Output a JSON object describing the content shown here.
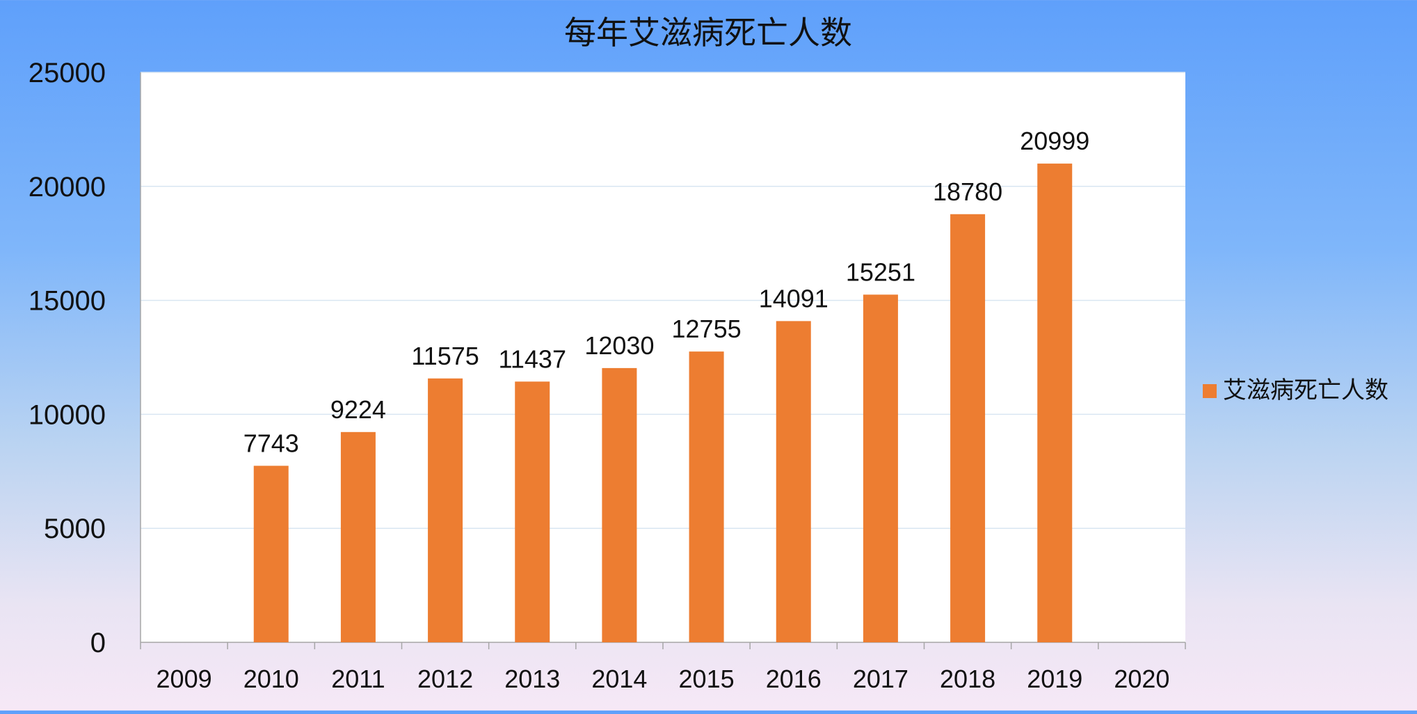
{
  "chart_data": {
    "type": "bar",
    "title": "每年艾滋病死亡人数",
    "categories": [
      "2009",
      "2010",
      "2011",
      "2012",
      "2013",
      "2014",
      "2015",
      "2016",
      "2017",
      "2018",
      "2019",
      "2020"
    ],
    "series": [
      {
        "name": "艾滋病死亡人数",
        "color": "#ed7d31",
        "values": [
          null,
          7743,
          9224,
          11575,
          11437,
          12030,
          12755,
          14091,
          15251,
          18780,
          20999,
          null
        ]
      }
    ],
    "yticks": [
      "0",
      "5000",
      "10000",
      "15000",
      "20000",
      "25000"
    ],
    "ylim": [
      0,
      25000
    ],
    "grid": true,
    "legend": "right",
    "plot_background": "#ffffff",
    "gridline_color": "#d9e6f2",
    "axis_color": "#a6a6a6"
  }
}
